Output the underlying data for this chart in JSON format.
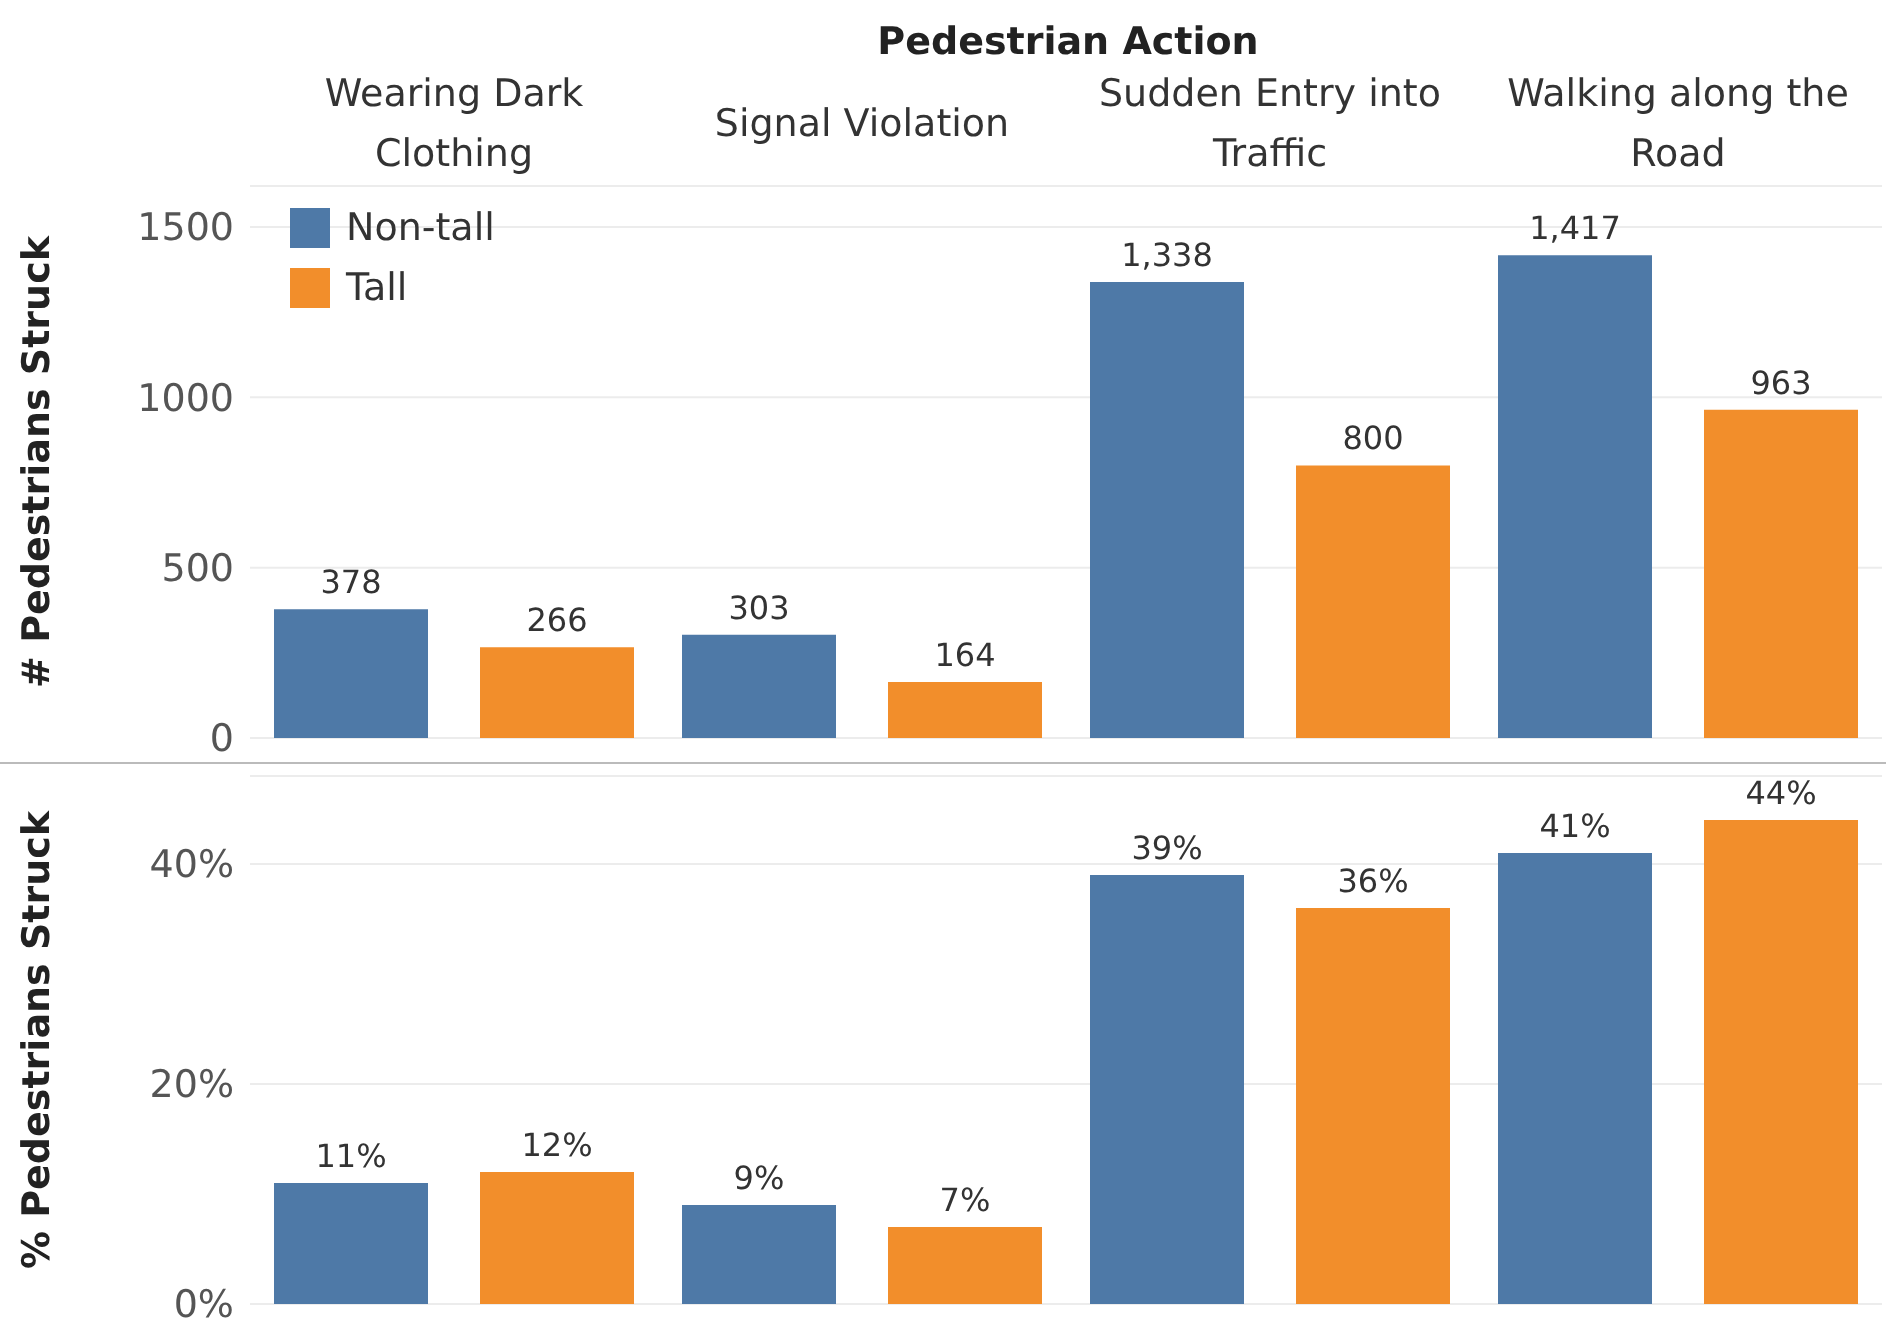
{
  "chart_data": [
    {
      "type": "bar",
      "xlabel": "Pedestrian Action",
      "ylabel": "# Pedestrians Struck",
      "categories": [
        "Wearing Dark Clothing",
        "Signal Violation",
        "Sudden Entry into Traffic",
        "Walking along the Road"
      ],
      "series": [
        {
          "name": "Non-tall",
          "color": "#4e79a7",
          "values": [
            378,
            303,
            1338,
            1417
          ],
          "value_labels": [
            "378",
            "303",
            "1,338",
            "1,417"
          ]
        },
        {
          "name": "Tall",
          "color": "#f28e2b",
          "values": [
            266,
            164,
            800,
            963
          ],
          "value_labels": [
            "266",
            "164",
            "800",
            "963"
          ]
        }
      ],
      "ylim": [
        0,
        1620
      ],
      "yticks": [
        0,
        500,
        1000,
        1500
      ],
      "grid": "y",
      "legend": "top left"
    },
    {
      "type": "bar",
      "ylabel": "% Pedestrians Struck",
      "categories": [
        null,
        null,
        null,
        null
      ],
      "series": [
        {
          "color": "#4e79a7",
          "values": [
            11,
            9,
            39,
            41
          ],
          "value_labels": [
            "11%",
            "9%",
            "39%",
            "41%"
          ]
        },
        {
          "color": "#f28e2b",
          "values": [
            12,
            7,
            36,
            44
          ],
          "value_labels": [
            "12%",
            "7%",
            "36%",
            "44%"
          ]
        }
      ],
      "ylim": [
        0,
        48
      ],
      "yticks": [
        {
          "value": 0,
          "label": "0%"
        },
        {
          "value": 20,
          "label": "20%"
        },
        {
          "value": 40,
          "label": "40%"
        }
      ],
      "grid": "y",
      "tick_labels": "y"
    }
  ]
}
